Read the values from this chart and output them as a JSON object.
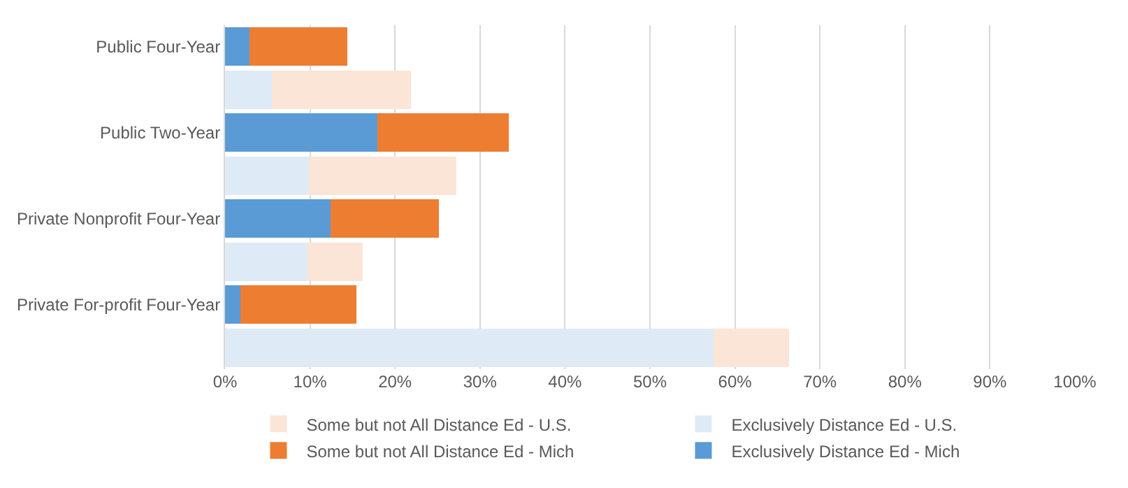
{
  "chart_data": {
    "type": "bar",
    "orientation": "horizontal",
    "stacked": true,
    "categories": [
      "Public Four-Year",
      null,
      "Public Two-Year",
      null,
      "Private Nonprofit Four-Year",
      null,
      "Private For-profit Four-Year",
      null
    ],
    "series": [
      {
        "name": "Exclusively Distance Ed - Mich",
        "color": "#5b9bd5",
        "values": [
          2.9,
          null,
          17.9,
          null,
          12.4,
          null,
          1.8,
          null
        ]
      },
      {
        "name": "Some but not All Distance Ed - Mich",
        "color": "#ed7d31",
        "values": [
          11.5,
          null,
          15.5,
          null,
          12.8,
          null,
          13.7,
          null
        ]
      },
      {
        "name": "Exclusively Distance Ed - U.S.",
        "color": "#deebf7",
        "values": [
          null,
          5.5,
          null,
          9.9,
          null,
          9.7,
          null,
          57.5
        ]
      },
      {
        "name": "Some but not All Distance Ed - U.S.",
        "color": "#fbe5d6",
        "values": [
          null,
          16.4,
          null,
          17.3,
          null,
          6.5,
          null,
          8.9
        ]
      }
    ],
    "xlim": [
      0,
      100
    ],
    "xticks": [
      {
        "value": 0,
        "label": "0%"
      },
      {
        "value": 10,
        "label": "10%"
      },
      {
        "value": 20,
        "label": "20%"
      },
      {
        "value": 30,
        "label": "30%"
      },
      {
        "value": 40,
        "label": "40%"
      },
      {
        "value": 50,
        "label": "50%"
      },
      {
        "value": 60,
        "label": "60%"
      },
      {
        "value": 70,
        "label": "70%"
      },
      {
        "value": 80,
        "label": "80%"
      },
      {
        "value": 90,
        "label": "90%"
      },
      {
        "value": 100,
        "label": "100%"
      }
    ],
    "grid": "x",
    "legend": "bottom"
  }
}
